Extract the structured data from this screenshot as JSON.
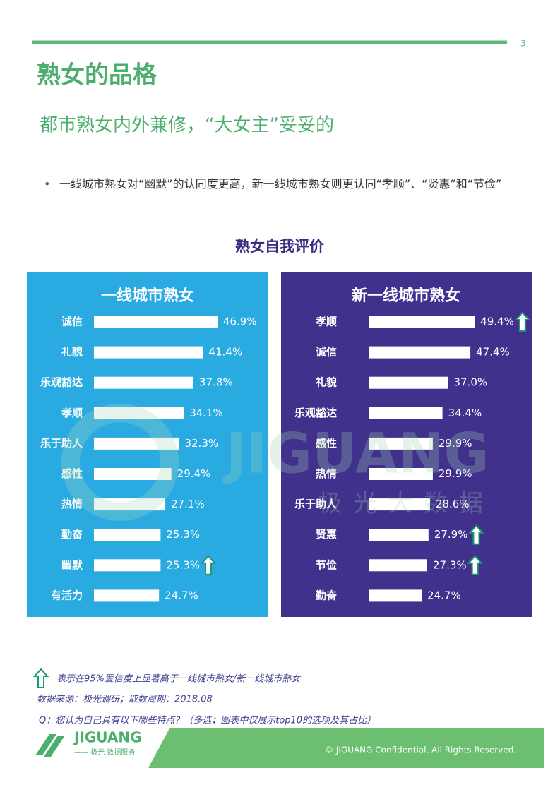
{
  "page_number": "3",
  "title": "熟女的品格",
  "subtitle": "都市熟女内外兼修，“大女主”妥妥的",
  "bullet": "一线城市熟女对“幽默”的认同度更高，新一线城市熟女则更认同“孝顺”、“贤惠”和“节俭”",
  "chart_title": "熟女自我评价",
  "watermark": {
    "brand": "JIGUANG",
    "name": "极光大数据"
  },
  "chart_data": [
    {
      "type": "bar",
      "orientation": "horizontal",
      "title": "一线城市熟女",
      "background": "#29abe2",
      "color": "#ffffff",
      "categories": [
        "诚信",
        "礼貌",
        "乐观豁达",
        "孝顺",
        "乐于助人",
        "感性",
        "热情",
        "勤奋",
        "幽默",
        "有活力"
      ],
      "values": [
        46.9,
        41.4,
        37.8,
        34.1,
        32.3,
        29.4,
        27.1,
        25.3,
        25.3,
        24.7
      ],
      "value_labels": [
        "46.9%",
        "41.4%",
        "37.8%",
        "34.1%",
        "32.3%",
        "29.4%",
        "27.1%",
        "25.3%",
        "25.3%",
        "24.7%"
      ],
      "significant": [
        false,
        false,
        false,
        false,
        false,
        false,
        false,
        false,
        true,
        false
      ]
    },
    {
      "type": "bar",
      "orientation": "horizontal",
      "title": "新一线城市熟女",
      "background": "#41318c",
      "color": "#ffffff",
      "categories": [
        "孝顺",
        "诚信",
        "礼貌",
        "乐观豁达",
        "感性",
        "热情",
        "乐于助人",
        "贤惠",
        "节俭",
        "勤奋"
      ],
      "values": [
        49.4,
        47.4,
        37.0,
        34.4,
        29.9,
        29.9,
        28.6,
        27.9,
        27.3,
        24.7
      ],
      "value_labels": [
        "49.4%",
        "47.4%",
        "37.0%",
        "34.4%",
        "29.9%",
        "29.9%",
        "28.6%",
        "27.9%",
        "27.3%",
        "24.7%"
      ],
      "significant": [
        true,
        false,
        false,
        false,
        false,
        false,
        false,
        true,
        true,
        false
      ]
    }
  ],
  "notes": {
    "legend": "表示在95%置信度上显著高于一线城市熟女/新一线城市熟女",
    "source": "数据来源：极光调研；取数周期：2018.08",
    "question": "Q：您认为自己具有以下哪些特点？（多选；图表中仅展示top10的选项及其占比）"
  },
  "footer": {
    "logo": "JIGUANG",
    "logo_sub": "—— 极光 数据服务",
    "copyright": "© JIGUANG Confidential. All Rights Reserved."
  }
}
